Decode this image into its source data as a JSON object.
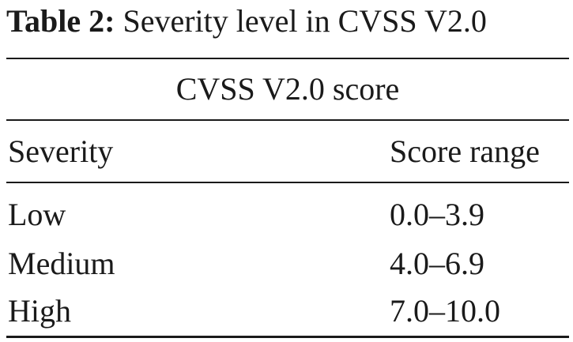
{
  "caption": {
    "label": "Table 2:",
    "text": "Severity level in CVSS V2.0"
  },
  "table": {
    "spanning_header": "CVSS V2.0 score",
    "columns": [
      "Severity",
      "Score range"
    ],
    "rows": [
      [
        "Low",
        "0.0–3.9"
      ],
      [
        "Medium",
        "4.0–6.9"
      ],
      [
        "High",
        "7.0–10.0"
      ]
    ]
  }
}
